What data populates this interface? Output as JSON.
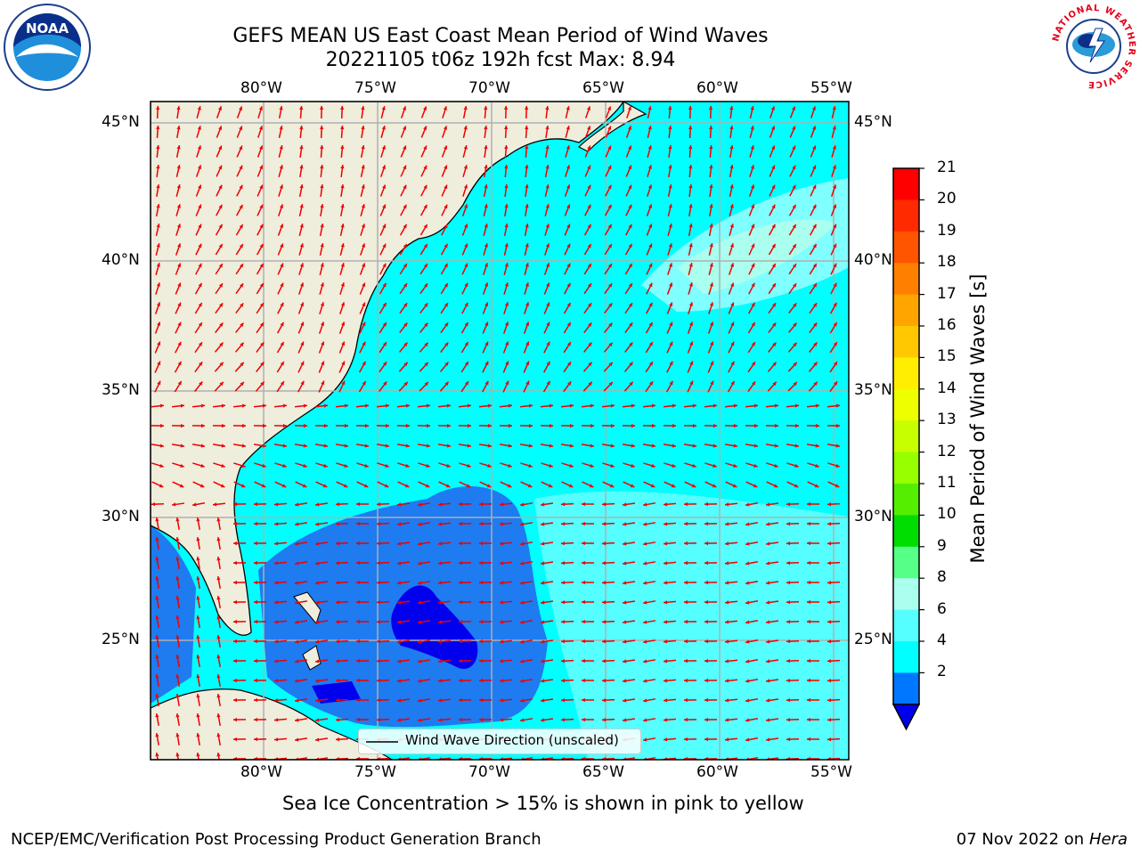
{
  "title": {
    "line1": "GEFS MEAN US East Coast Mean Period of Wind Waves",
    "line2": "20221105 t06z 192h fcst   Max: 8.94"
  },
  "lon_ticks": [
    "80°W",
    "75°W",
    "70°W",
    "65°W",
    "60°W",
    "55°W"
  ],
  "lat_ticks": [
    "45°N",
    "40°N",
    "35°N",
    "30°N",
    "25°N"
  ],
  "legend": {
    "label": "Wind Wave Direction (unscaled)"
  },
  "colorbar": {
    "label": "Mean Period of Wind Waves [s]",
    "ticks": [
      "21",
      "20",
      "19",
      "18",
      "17",
      "16",
      "15",
      "14",
      "13",
      "12",
      "11",
      "10",
      "9",
      "8",
      "6",
      "4",
      "2"
    ],
    "colors": [
      "#ff0000",
      "#ff2a00",
      "#ff5500",
      "#ff7f00",
      "#ffa500",
      "#ffc800",
      "#ffee00",
      "#eeff00",
      "#c8ff00",
      "#96ff00",
      "#55ee00",
      "#00dd00",
      "#55ff88",
      "#aaffee",
      "#55ffff",
      "#00ffff",
      "#0077ff"
    ],
    "under_color": "#0000ee"
  },
  "colors": {
    "land": "#efeddc",
    "coast": "#000000",
    "arrows": "#ee0000",
    "grid": "#b0b0b0"
  },
  "note": "Sea Ice Concentration > 15% is shown in pink to yellow",
  "footer": {
    "left": "NCEP/EMC/Verification Post Processing Product Generation Branch",
    "date": "07 Nov 2022 on",
    "host": "Hera"
  },
  "logos": {
    "left": "NOAA",
    "right_ring": "NATIONAL WEATHER SERVICE"
  }
}
